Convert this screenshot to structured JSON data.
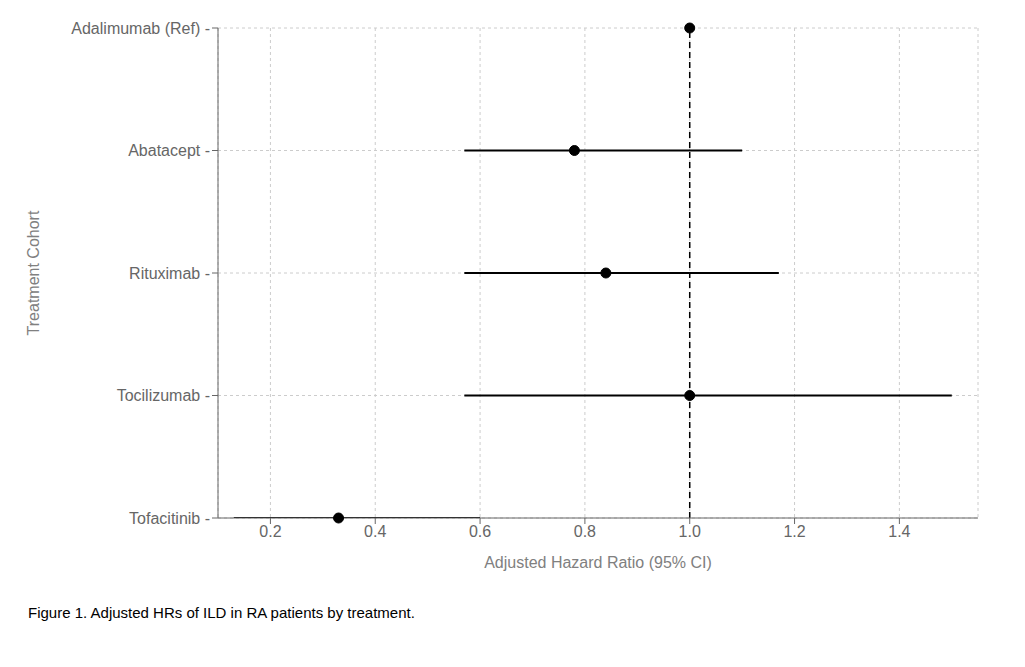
{
  "chart_data": {
    "type": "forest",
    "categories": [
      "Adalimumab (Ref) -",
      "Abatacept -",
      "Rituximab -",
      "Tocilizumab -",
      "Tofacitinib -"
    ],
    "values": [
      1.0,
      0.78,
      0.84,
      1.0,
      0.33
    ],
    "ci_low": [
      1.0,
      0.57,
      0.57,
      0.57,
      0.13
    ],
    "ci_high": [
      1.0,
      1.1,
      1.17,
      1.5,
      0.6
    ],
    "xlim": [
      0.1,
      1.55
    ],
    "xticks": [
      0.2,
      0.4,
      0.6,
      0.8,
      {
        "value": 1.0,
        "label": "1.0"
      },
      1.2,
      1.4
    ],
    "xlabel": "Adjusted Hazard Ratio (95% CI)",
    "ylabel": "Treatment Cohort",
    "ref_line": 1.0,
    "grid": true,
    "color": "#000000",
    "caption": "Figure 1. Adjusted HRs of ILD in RA patients by treatment."
  }
}
